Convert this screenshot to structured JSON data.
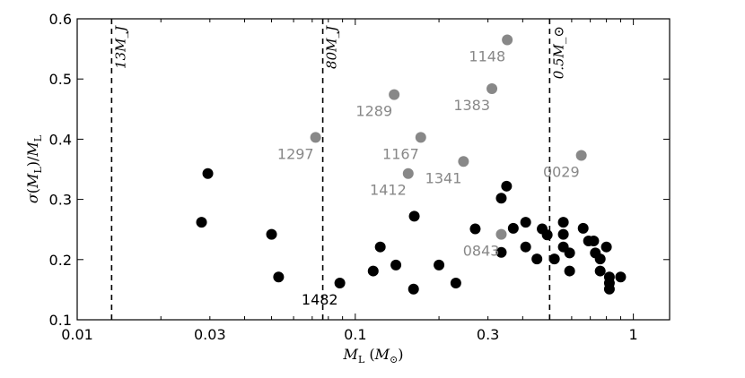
{
  "chart_data": {
    "type": "scatter",
    "title": "",
    "xlabel": "M_L (M_⊙)",
    "ylabel": "σ(M_L)/M_L",
    "xscale": "log",
    "xlim": [
      0.01,
      1.35
    ],
    "ylim": [
      0.1,
      0.6
    ],
    "xticks": [
      {
        "value": 0.01,
        "label": "0.01"
      },
      {
        "value": 0.03,
        "label": "0.03"
      },
      {
        "value": 0.1,
        "label": "0.1"
      },
      {
        "value": 0.3,
        "label": "0.3"
      },
      {
        "value": 1,
        "label": "1"
      }
    ],
    "yticks": [
      {
        "value": 0.1,
        "label": "0.1"
      },
      {
        "value": 0.2,
        "label": "0.2"
      },
      {
        "value": 0.3,
        "label": "0.3"
      },
      {
        "value": 0.4,
        "label": "0.4"
      },
      {
        "value": 0.5,
        "label": "0.5"
      },
      {
        "value": 0.6,
        "label": "0.6"
      }
    ],
    "grid": false,
    "reference_lines": [
      {
        "x": 0.0133,
        "label": "13M_J"
      },
      {
        "x": 0.0764,
        "label": "80M_J"
      },
      {
        "x": 0.5,
        "label": "0.5M_⊙"
      }
    ],
    "series": [
      {
        "color": "#000000",
        "points": [
          {
            "x": 0.028,
            "y": 0.262
          },
          {
            "x": 0.0295,
            "y": 0.343
          },
          {
            "x": 0.05,
            "y": 0.242
          },
          {
            "x": 0.053,
            "y": 0.171
          },
          {
            "x": 0.088,
            "y": 0.161
          },
          {
            "x": 0.116,
            "y": 0.181
          },
          {
            "x": 0.123,
            "y": 0.221
          },
          {
            "x": 0.14,
            "y": 0.191
          },
          {
            "x": 0.163,
            "y": 0.272
          },
          {
            "x": 0.162,
            "y": 0.151
          },
          {
            "x": 0.2,
            "y": 0.191
          },
          {
            "x": 0.23,
            "y": 0.161
          },
          {
            "x": 0.27,
            "y": 0.251
          },
          {
            "x": 0.335,
            "y": 0.212
          },
          {
            "x": 0.335,
            "y": 0.302
          },
          {
            "x": 0.35,
            "y": 0.322
          },
          {
            "x": 0.37,
            "y": 0.252
          },
          {
            "x": 0.41,
            "y": 0.262
          },
          {
            "x": 0.41,
            "y": 0.221
          },
          {
            "x": 0.45,
            "y": 0.201
          },
          {
            "x": 0.47,
            "y": 0.251
          },
          {
            "x": 0.49,
            "y": 0.241
          },
          {
            "x": 0.52,
            "y": 0.201
          },
          {
            "x": 0.56,
            "y": 0.262
          },
          {
            "x": 0.56,
            "y": 0.242
          },
          {
            "x": 0.56,
            "y": 0.221
          },
          {
            "x": 0.59,
            "y": 0.211
          },
          {
            "x": 0.59,
            "y": 0.181
          },
          {
            "x": 0.66,
            "y": 0.252
          },
          {
            "x": 0.69,
            "y": 0.231
          },
          {
            "x": 0.72,
            "y": 0.231
          },
          {
            "x": 0.73,
            "y": 0.211
          },
          {
            "x": 0.76,
            "y": 0.201
          },
          {
            "x": 0.76,
            "y": 0.181
          },
          {
            "x": 0.8,
            "y": 0.221
          },
          {
            "x": 0.82,
            "y": 0.161
          },
          {
            "x": 0.82,
            "y": 0.151
          },
          {
            "x": 0.82,
            "y": 0.171
          },
          {
            "x": 0.9,
            "y": 0.171
          }
        ]
      },
      {
        "color": "#888888",
        "points": [
          {
            "x": 0.072,
            "y": 0.403
          },
          {
            "x": 0.138,
            "y": 0.474
          },
          {
            "x": 0.155,
            "y": 0.343
          },
          {
            "x": 0.172,
            "y": 0.403
          },
          {
            "x": 0.245,
            "y": 0.363
          },
          {
            "x": 0.31,
            "y": 0.484
          },
          {
            "x": 0.352,
            "y": 0.565
          },
          {
            "x": 0.335,
            "y": 0.242
          },
          {
            "x": 0.65,
            "y": 0.373
          }
        ]
      }
    ],
    "annotations": [
      {
        "text": "1148",
        "x": 0.352,
        "y": 0.565,
        "color": "#888888"
      },
      {
        "text": "1383",
        "x": 0.31,
        "y": 0.484,
        "color": "#888888"
      },
      {
        "text": "1289",
        "x": 0.138,
        "y": 0.474,
        "color": "#888888"
      },
      {
        "text": "1297",
        "x": 0.072,
        "y": 0.403,
        "color": "#888888"
      },
      {
        "text": "1167",
        "x": 0.172,
        "y": 0.403,
        "color": "#888888"
      },
      {
        "text": "1341",
        "x": 0.245,
        "y": 0.363,
        "color": "#888888"
      },
      {
        "text": "1412",
        "x": 0.155,
        "y": 0.343,
        "color": "#888888"
      },
      {
        "text": "0029",
        "x": 0.65,
        "y": 0.373,
        "color": "#888888"
      },
      {
        "text": "0843",
        "x": 0.335,
        "y": 0.242,
        "color": "#888888"
      },
      {
        "text": "1482",
        "x": 0.088,
        "y": 0.161,
        "color": "#000000"
      }
    ]
  }
}
